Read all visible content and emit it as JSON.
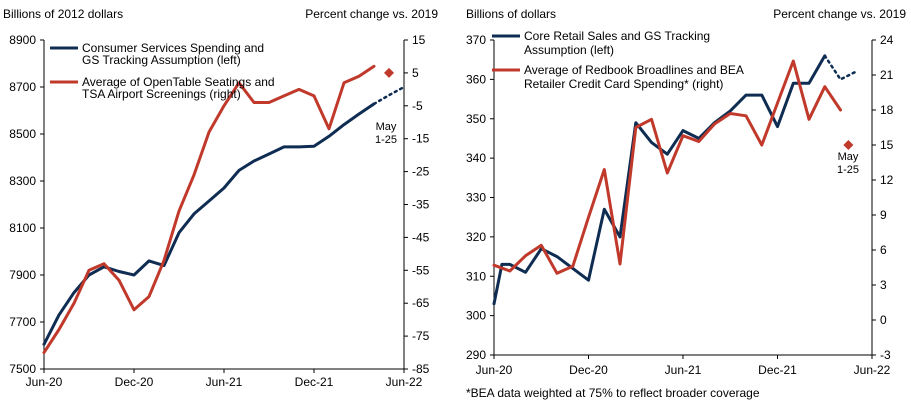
{
  "colors": {
    "navy": "#0f2d52",
    "red": "#c0392b",
    "diamond": "#c0392b",
    "axis": "#000000"
  },
  "chart_data": [
    {
      "type": "line",
      "left_header": "Billions of  2012 dollars",
      "right_header": "Percent change vs. 2019",
      "x_ticks": [
        "Jun-20",
        "Dec-20",
        "Jun-21",
        "Dec-21",
        "Jun-22"
      ],
      "x_tick_months": [
        0,
        6,
        12,
        18,
        24
      ],
      "x_range_months": [
        0,
        24
      ],
      "y_left": {
        "min": 7500,
        "max": 8900,
        "ticks": [
          7500,
          7700,
          7900,
          8100,
          8300,
          8500,
          8700,
          8900
        ]
      },
      "y_right": {
        "min": -85,
        "max": 15,
        "ticks": [
          -85,
          -75,
          -65,
          -55,
          -45,
          -35,
          -25,
          -15,
          -5,
          5,
          15
        ]
      },
      "legend": [
        "Consumer Services Spending and GS Tracking Assumption (left)",
        "Average of OpenTable Seatings and TSA Airport Screenings (right)"
      ],
      "legend_lines": [
        [
          "Consumer Services Spending and",
          "GS Tracking Assumption (left)"
        ],
        [
          "Average of OpenTable Seatings and",
          "TSA Airport Screenings (right)"
        ]
      ],
      "series": [
        {
          "name": "Consumer Services Spending and GS Tracking Assumption (left)",
          "axis": "left",
          "x": [
            0,
            1,
            2,
            3,
            4,
            5,
            6,
            7,
            8,
            9,
            10,
            11,
            12,
            13,
            14,
            15,
            16,
            17,
            18,
            19,
            20,
            21,
            22
          ],
          "values": [
            7605,
            7730,
            7825,
            7900,
            7935,
            7915,
            7900,
            7960,
            7940,
            8080,
            8160,
            8215,
            8270,
            8345,
            8385,
            8415,
            8445,
            8445,
            8448,
            8490,
            8540,
            8585,
            8628
          ]
        },
        {
          "name": "GS Tracking Assumption (dotted)",
          "axis": "left",
          "style": "dotted",
          "x": [
            22,
            23,
            24
          ],
          "values": [
            8628,
            8665,
            8700
          ]
        },
        {
          "name": "Average of OpenTable Seatings and TSA Airport Screenings (right)",
          "axis": "right",
          "x": [
            0,
            1,
            2,
            3,
            4,
            5,
            6,
            7,
            8,
            9,
            10,
            11,
            12,
            13,
            14,
            15,
            16,
            17,
            18,
            19,
            20,
            21,
            22
          ],
          "values": [
            -80,
            -73,
            -65,
            -55,
            -53,
            -58,
            -67,
            -63,
            -52,
            -37,
            -26,
            -13,
            -5,
            2,
            -4,
            -4,
            -2,
            0,
            -2,
            -12,
            2,
            4,
            7
          ]
        }
      ],
      "marker": {
        "label_lines": [
          "May",
          "1-25"
        ],
        "axis": "right",
        "x": 23,
        "value": 5
      }
    },
    {
      "type": "line",
      "left_header": "Billions of  dollars",
      "right_header": "Percent change vs. 2019",
      "x_ticks": [
        "Jun-20",
        "Dec-20",
        "Jun-21",
        "Dec-21",
        "Jun-22"
      ],
      "x_tick_months": [
        0,
        6,
        12,
        18,
        24
      ],
      "x_range_months": [
        0,
        24
      ],
      "y_left": {
        "min": 290,
        "max": 370,
        "ticks": [
          290,
          300,
          310,
          320,
          330,
          340,
          350,
          360,
          370
        ]
      },
      "y_right": {
        "min": -3,
        "max": 24,
        "ticks": [
          -3,
          0,
          3,
          6,
          9,
          12,
          15,
          18,
          21,
          24
        ]
      },
      "legend": [
        "Core Retail Sales and GS Tracking Assumption (left)",
        "Average of Redbook Broadlines and BEA Retailer Credit Card Spending* (right)"
      ],
      "legend_lines": [
        [
          "Core Retail Sales and GS Tracking",
          "Assumption (left)"
        ],
        [
          "Average of Redbook Broadlines and BEA",
          "Retailer Credit Card Spending* (right)"
        ]
      ],
      "footnote": "*BEA data weighted at 75% to reflect broader coverage",
      "series": [
        {
          "name": "Core Retail Sales and GS Tracking Assumption (left)",
          "axis": "left",
          "x": [
            0,
            0.5,
            1,
            2,
            3,
            4,
            5,
            6,
            7,
            8,
            9,
            10,
            11,
            12,
            13,
            14,
            15,
            16,
            17,
            18,
            19,
            20,
            21
          ],
          "values": [
            303,
            313,
            313,
            311,
            317,
            315,
            312,
            309,
            327,
            320,
            349,
            344,
            341,
            347,
            345,
            349,
            352,
            356,
            356,
            348,
            359,
            359,
            366
          ]
        },
        {
          "name": "GS Tracking Assumption (dotted)",
          "axis": "left",
          "style": "dotted",
          "x": [
            21,
            22,
            23
          ],
          "values": [
            366,
            360,
            362
          ]
        },
        {
          "name": "Average of Redbook Broadlines and BEA Retailer Credit Card Spending* (right)",
          "axis": "right",
          "x": [
            0,
            1,
            2,
            3,
            4,
            5,
            6,
            7,
            8,
            9,
            10,
            11,
            12,
            13,
            14,
            15,
            16,
            17,
            18,
            19,
            20,
            21,
            22
          ],
          "values": [
            4.7,
            4.2,
            5.5,
            6.4,
            4.0,
            4.6,
            8.8,
            12.9,
            4.8,
            16.5,
            17.2,
            12.6,
            15.8,
            15.3,
            16.8,
            17.7,
            17.5,
            15.0,
            18.6,
            22.2,
            17.2,
            20.0,
            18.0
          ]
        }
      ],
      "marker": {
        "label_lines": [
          "May",
          "1-25"
        ],
        "axis": "right",
        "x": 22.5,
        "value": 15
      }
    }
  ]
}
